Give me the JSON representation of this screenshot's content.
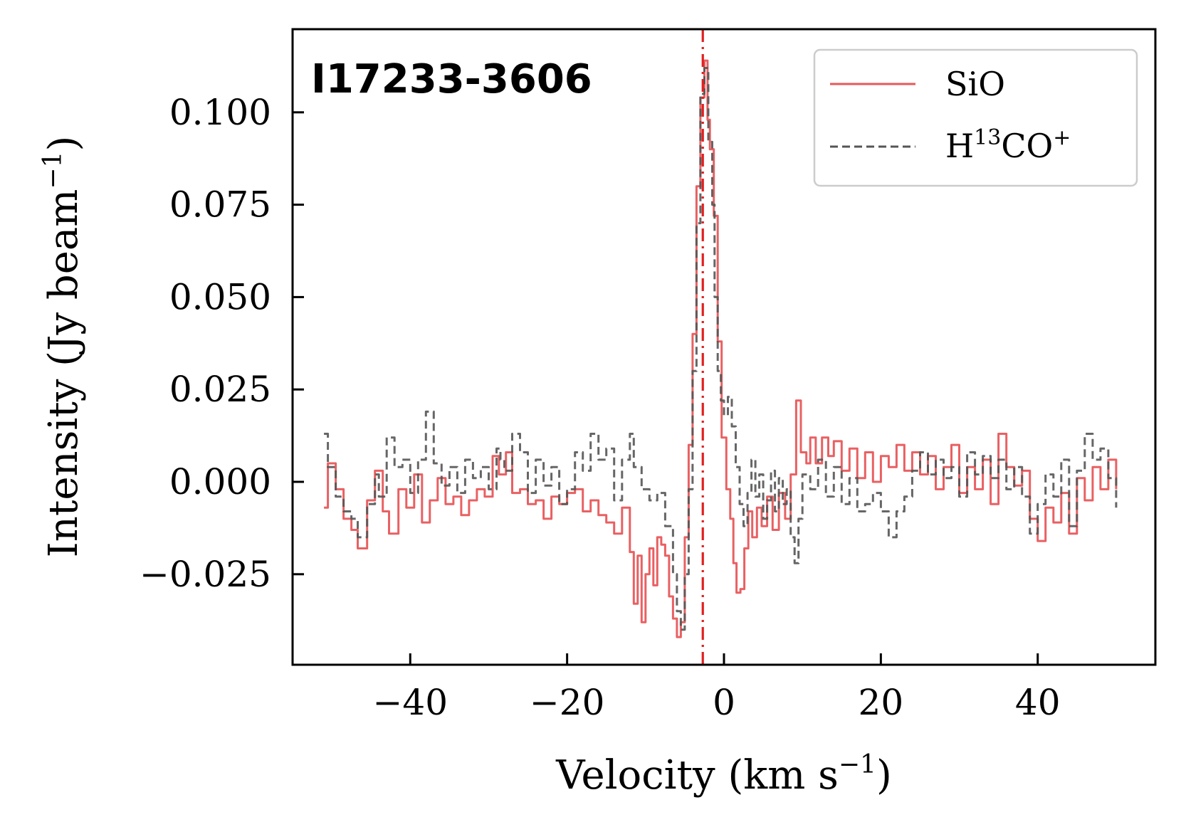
{
  "chart_data": {
    "type": "line",
    "source_label": "I17233-3606",
    "xlabel": "Velocity (km s",
    "xlabel_sup": "−1",
    "xlabel_tail": ")",
    "ylabel": "Intensity (Jy beam",
    "ylabel_sup": "−1",
    "ylabel_tail": ")",
    "xlim": [
      -55,
      55
    ],
    "ylim": [
      -0.0495,
      0.1225
    ],
    "x_ticks": [
      -40,
      -20,
      0,
      20,
      40
    ],
    "x_tick_labels": [
      "−40",
      "−20",
      "0",
      "20",
      "40"
    ],
    "y_ticks": [
      -0.025,
      0.0,
      0.025,
      0.05,
      0.075,
      0.1
    ],
    "y_tick_labels": [
      "−0.025",
      "0.000",
      "0.025",
      "0.050",
      "0.075",
      "0.100"
    ],
    "vline_x": -2.7,
    "legend_position": "top-right",
    "series": [
      {
        "name": "SiO",
        "legend_main": "SiO",
        "color": "#e8575a",
        "style": "solid",
        "points": [
          [
            -51,
            -0.007
          ],
          [
            -50.5,
            0.005
          ],
          [
            -49.5,
            -0.002
          ],
          [
            -48.5,
            -0.01
          ],
          [
            -47.5,
            -0.013
          ],
          [
            -46.7,
            -0.018
          ],
          [
            -45.5,
            -0.005
          ],
          [
            -44.5,
            0.003
          ],
          [
            -43.5,
            -0.008
          ],
          [
            -42.7,
            -0.014
          ],
          [
            -41.5,
            -0.002
          ],
          [
            -40.5,
            -0.007
          ],
          [
            -39.5,
            0.002
          ],
          [
            -38.5,
            -0.011
          ],
          [
            -37.5,
            -0.005
          ],
          [
            -36.5,
            0.001
          ],
          [
            -35.5,
            -0.006
          ],
          [
            -34.5,
            -0.004
          ],
          [
            -33.5,
            -0.009
          ],
          [
            -32.5,
            -0.005
          ],
          [
            -31.5,
            -0.002
          ],
          [
            -30.5,
            -0.004
          ],
          [
            -29.5,
            0.007
          ],
          [
            -28.7,
            0.002
          ],
          [
            -27.8,
            0.008
          ],
          [
            -27,
            -0.003
          ],
          [
            -26,
            -0.002
          ],
          [
            -25,
            -0.006
          ],
          [
            -24,
            -0.005
          ],
          [
            -23,
            -0.01
          ],
          [
            -22,
            -0.004
          ],
          [
            -21,
            -0.006
          ],
          [
            -20,
            -0.003
          ],
          [
            -19,
            -0.002
          ],
          [
            -18,
            -0.008
          ],
          [
            -17,
            -0.005
          ],
          [
            -16,
            -0.009
          ],
          [
            -15,
            -0.011
          ],
          [
            -14,
            -0.014
          ],
          [
            -13,
            -0.007
          ],
          [
            -12,
            -0.019
          ],
          [
            -11.5,
            -0.033
          ],
          [
            -11,
            -0.02
          ],
          [
            -10.5,
            -0.038
          ],
          [
            -10,
            -0.025
          ],
          [
            -9.5,
            -0.018
          ],
          [
            -9,
            -0.028
          ],
          [
            -8.5,
            -0.015
          ],
          [
            -8,
            -0.017
          ],
          [
            -7.5,
            -0.02
          ],
          [
            -7,
            -0.031
          ],
          [
            -6.5,
            -0.037
          ],
          [
            -6,
            -0.042
          ],
          [
            -5.5,
            -0.038
          ],
          [
            -5,
            -0.015
          ],
          [
            -4.5,
            0.01
          ],
          [
            -4,
            0.04
          ],
          [
            -3.5,
            0.08
          ],
          [
            -3,
            0.104
          ],
          [
            -2.5,
            0.114
          ],
          [
            -2.1,
            0.098
          ],
          [
            -1.8,
            0.09
          ],
          [
            -1.3,
            0.072
          ],
          [
            -0.8,
            0.038
          ],
          [
            -0.3,
            0.012
          ],
          [
            0.3,
            -0.002
          ],
          [
            0.8,
            -0.01
          ],
          [
            1.2,
            -0.022
          ],
          [
            1.6,
            -0.03
          ],
          [
            2.1,
            -0.029
          ],
          [
            2.6,
            -0.018
          ],
          [
            3.1,
            -0.008
          ],
          [
            3.6,
            -0.015
          ],
          [
            4.2,
            -0.007
          ],
          [
            4.8,
            -0.012
          ],
          [
            5.5,
            -0.004
          ],
          [
            6.2,
            -0.013
          ],
          [
            7,
            -0.003
          ],
          [
            7.8,
            -0.01
          ],
          [
            8.5,
            0.002
          ],
          [
            9.2,
            0.022
          ],
          [
            9.8,
            0.008
          ],
          [
            10.5,
            0.005
          ],
          [
            11,
            0.012
          ],
          [
            11.7,
            0.005
          ],
          [
            12.5,
            0.012
          ],
          [
            13.3,
            0.007
          ],
          [
            14,
            0.011
          ],
          [
            15,
            0.003
          ],
          [
            16,
            0.009
          ],
          [
            17,
            0.001
          ],
          [
            18,
            0.008
          ],
          [
            19,
            0.0
          ],
          [
            20,
            0.007
          ],
          [
            21,
            0.004
          ],
          [
            22,
            0.01
          ],
          [
            23,
            0.003
          ],
          [
            24,
            0.008
          ],
          [
            25,
            0.002
          ],
          [
            26,
            0.007
          ],
          [
            27,
            -0.002
          ],
          [
            28,
            0.004
          ],
          [
            29,
            0.01
          ],
          [
            30,
            -0.003
          ],
          [
            31,
            0.004
          ],
          [
            32,
            -0.002
          ],
          [
            33,
            0.006
          ],
          [
            34,
            -0.006
          ],
          [
            35,
            0.013
          ],
          [
            36,
            0.004
          ],
          [
            37,
            -0.001
          ],
          [
            38,
            0.003
          ],
          [
            39,
            -0.01
          ],
          [
            40,
            -0.016
          ],
          [
            41,
            -0.007
          ],
          [
            42,
            -0.011
          ],
          [
            43,
            -0.003
          ],
          [
            44,
            -0.014
          ],
          [
            45,
            0.001
          ],
          [
            46,
            -0.005
          ],
          [
            47,
            0.004
          ],
          [
            48,
            -0.002
          ],
          [
            49,
            0.006
          ],
          [
            50,
            -0.002
          ]
        ]
      },
      {
        "name": "H13CO+",
        "legend_main": "H",
        "legend_sup1": "13",
        "legend_mid": "CO",
        "legend_sup2": "+",
        "color": "#555555",
        "style": "dashed",
        "points": [
          [
            -51,
            0.013
          ],
          [
            -50.5,
            0.004
          ],
          [
            -49.5,
            -0.004
          ],
          [
            -48.5,
            -0.008
          ],
          [
            -47.5,
            -0.01
          ],
          [
            -46.7,
            -0.015
          ],
          [
            -45.5,
            -0.006
          ],
          [
            -44.5,
            0.002
          ],
          [
            -44,
            -0.004
          ],
          [
            -43,
            0.012
          ],
          [
            -42,
            0.004
          ],
          [
            -41,
            0.006
          ],
          [
            -40,
            -0.003
          ],
          [
            -39,
            0.006
          ],
          [
            -38,
            0.019
          ],
          [
            -37,
            0.005
          ],
          [
            -36,
            -0.001
          ],
          [
            -35,
            0.004
          ],
          [
            -34,
            -0.003
          ],
          [
            -33,
            0.006
          ],
          [
            -32,
            0.001
          ],
          [
            -31,
            0.004
          ],
          [
            -30,
            -0.002
          ],
          [
            -29,
            0.009
          ],
          [
            -28.5,
            0.006
          ],
          [
            -28,
            0.003
          ],
          [
            -27,
            0.013
          ],
          [
            -26,
            0.008
          ],
          [
            -25,
            -0.003
          ],
          [
            -24,
            0.006
          ],
          [
            -23,
            -0.001
          ],
          [
            -22,
            0.004
          ],
          [
            -21,
            -0.006
          ],
          [
            -20,
            -0.002
          ],
          [
            -19,
            0.008
          ],
          [
            -18,
            0.003
          ],
          [
            -17,
            0.013
          ],
          [
            -16,
            0.006
          ],
          [
            -15,
            0.009
          ],
          [
            -14,
            -0.005
          ],
          [
            -13,
            0.006
          ],
          [
            -12,
            0.013
          ],
          [
            -11.5,
            0.004
          ],
          [
            -10.5,
            -0.002
          ],
          [
            -9.5,
            -0.005
          ],
          [
            -8.5,
            -0.003
          ],
          [
            -7.5,
            -0.012
          ],
          [
            -6.5,
            -0.025
          ],
          [
            -6,
            -0.035
          ],
          [
            -5.5,
            -0.04
          ],
          [
            -5,
            -0.025
          ],
          [
            -4.5,
            -0.002
          ],
          [
            -4,
            0.03
          ],
          [
            -3.5,
            0.07
          ],
          [
            -3,
            0.105
          ],
          [
            -2.5,
            0.112
          ],
          [
            -2,
            0.092
          ],
          [
            -1.5,
            0.075
          ],
          [
            -1.2,
            0.05
          ],
          [
            -0.8,
            0.03
          ],
          [
            -0.4,
            0.022
          ],
          [
            0,
            0.018
          ],
          [
            0.5,
            0.023
          ],
          [
            1,
            0.015
          ],
          [
            1.5,
            0.004
          ],
          [
            2,
            -0.006
          ],
          [
            2.5,
            -0.012
          ],
          [
            3,
            -0.003
          ],
          [
            3.5,
            0.006
          ],
          [
            4,
            -0.004
          ],
          [
            4.5,
            0.002
          ],
          [
            5,
            -0.01
          ],
          [
            5.5,
            -0.005
          ],
          [
            6,
            0.003
          ],
          [
            6.5,
            -0.008
          ],
          [
            7,
            0.001
          ],
          [
            7.5,
            -0.006
          ],
          [
            8,
            -0.002
          ],
          [
            8.5,
            -0.015
          ],
          [
            9,
            -0.022
          ],
          [
            9.5,
            -0.01
          ],
          [
            10,
            0.002
          ],
          [
            11,
            -0.002
          ],
          [
            12,
            0.006
          ],
          [
            13,
            -0.004
          ],
          [
            14,
            0.004
          ],
          [
            15,
            -0.006
          ],
          [
            16,
            0.001
          ],
          [
            17,
            -0.008
          ],
          [
            18,
            -0.006
          ],
          [
            19,
            -0.003
          ],
          [
            20,
            -0.008
          ],
          [
            21,
            -0.015
          ],
          [
            22,
            -0.008
          ],
          [
            23,
            -0.004
          ],
          [
            24,
            0.003
          ],
          [
            25,
            0.008
          ],
          [
            26,
            0.002
          ],
          [
            27,
            0.006
          ],
          [
            28,
            0.001
          ],
          [
            29,
            0.004
          ],
          [
            30,
            -0.004
          ],
          [
            31,
            0.008
          ],
          [
            32,
            0.002
          ],
          [
            33,
            0.007
          ],
          [
            34,
            0.001
          ],
          [
            35,
            0.006
          ],
          [
            36,
            -0.002
          ],
          [
            37,
            0.004
          ],
          [
            38,
            -0.004
          ],
          [
            39,
            -0.014
          ],
          [
            40,
            -0.006
          ],
          [
            41,
            0.002
          ],
          [
            42,
            -0.004
          ],
          [
            43,
            0.006
          ],
          [
            44,
            -0.012
          ],
          [
            45,
            0.003
          ],
          [
            46,
            0.013
          ],
          [
            47,
            0.006
          ],
          [
            48,
            0.009
          ],
          [
            49,
            0.001
          ],
          [
            50,
            -0.007
          ]
        ]
      }
    ]
  }
}
